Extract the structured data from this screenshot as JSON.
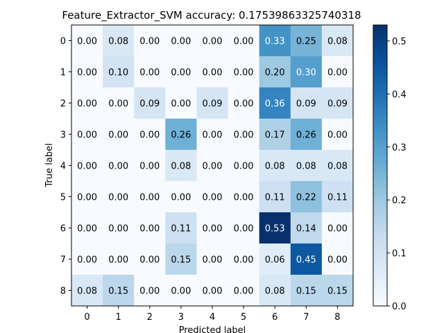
{
  "chart_data": {
    "type": "heatmap",
    "title": "Feature_Extractor_SVM accuracy: 0.17539863325740318",
    "xlabel": "Predicted label",
    "ylabel": "True label",
    "x_categories": [
      "0",
      "1",
      "2",
      "3",
      "4",
      "5",
      "6",
      "7",
      "8"
    ],
    "y_categories": [
      "0",
      "1",
      "2",
      "3",
      "4",
      "5",
      "6",
      "7",
      "8"
    ],
    "values": [
      [
        0.0,
        0.08,
        0.0,
        0.0,
        0.0,
        0.0,
        0.33,
        0.25,
        0.08
      ],
      [
        0.0,
        0.1,
        0.0,
        0.0,
        0.0,
        0.0,
        0.2,
        0.3,
        0.0
      ],
      [
        0.0,
        0.0,
        0.09,
        0.0,
        0.09,
        0.0,
        0.36,
        0.09,
        0.09
      ],
      [
        0.0,
        0.0,
        0.0,
        0.26,
        0.0,
        0.0,
        0.17,
        0.26,
        0.0
      ],
      [
        0.0,
        0.0,
        0.0,
        0.08,
        0.0,
        0.0,
        0.08,
        0.08,
        0.08
      ],
      [
        0.0,
        0.0,
        0.0,
        0.0,
        0.0,
        0.0,
        0.11,
        0.22,
        0.11
      ],
      [
        0.0,
        0.0,
        0.0,
        0.11,
        0.0,
        0.0,
        0.53,
        0.14,
        0.0
      ],
      [
        0.0,
        0.0,
        0.0,
        0.15,
        0.0,
        0.0,
        0.06,
        0.45,
        0.0
      ],
      [
        0.08,
        0.15,
        0.0,
        0.0,
        0.0,
        0.0,
        0.08,
        0.15,
        0.15
      ]
    ],
    "value_range": [
      0.0,
      0.53
    ],
    "colormap": "Blues",
    "colorbar_ticks": [
      "0.0",
      "0.1",
      "0.2",
      "0.3",
      "0.4",
      "0.5"
    ],
    "colorbar_tick_values": [
      0.0,
      0.1,
      0.2,
      0.3,
      0.4,
      0.5
    ],
    "grid": false,
    "text_color_dark": "#000000",
    "text_color_light": "#ffffff"
  }
}
